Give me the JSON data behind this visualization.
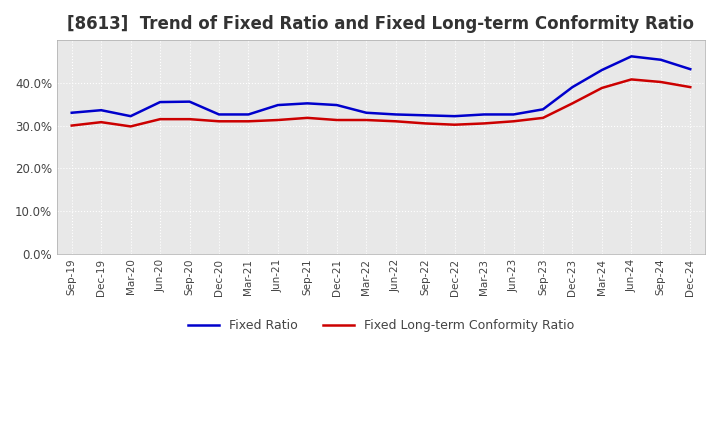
{
  "title": "[8613]  Trend of Fixed Ratio and Fixed Long-term Conformity Ratio",
  "x_labels": [
    "Sep-19",
    "Dec-19",
    "Mar-20",
    "Jun-20",
    "Sep-20",
    "Dec-20",
    "Mar-21",
    "Jun-21",
    "Sep-21",
    "Dec-21",
    "Mar-22",
    "Jun-22",
    "Sep-22",
    "Dec-22",
    "Mar-23",
    "Jun-23",
    "Sep-23",
    "Dec-23",
    "Mar-24",
    "Jun-24",
    "Sep-24",
    "Dec-24"
  ],
  "fixed_ratio": [
    0.33,
    0.336,
    0.322,
    0.355,
    0.356,
    0.326,
    0.326,
    0.348,
    0.352,
    0.348,
    0.33,
    0.326,
    0.324,
    0.322,
    0.326,
    0.326,
    0.338,
    0.39,
    0.43,
    0.462,
    0.454,
    0.432
  ],
  "fixed_lt_ratio": [
    0.3,
    0.308,
    0.298,
    0.315,
    0.315,
    0.31,
    0.31,
    0.313,
    0.318,
    0.313,
    0.313,
    0.31,
    0.305,
    0.302,
    0.305,
    0.31,
    0.318,
    0.352,
    0.388,
    0.408,
    0.402,
    0.39
  ],
  "fixed_ratio_color": "#0000cc",
  "fixed_lt_ratio_color": "#cc0000",
  "background_color": "#ffffff",
  "plot_bg_color": "#e8e8e8",
  "grid_color": "#ffffff",
  "ylim": [
    0.0,
    0.5
  ],
  "yticks": [
    0.0,
    0.1,
    0.2,
    0.3,
    0.4
  ],
  "legend_labels": [
    "Fixed Ratio",
    "Fixed Long-term Conformity Ratio"
  ],
  "title_fontsize": 12
}
